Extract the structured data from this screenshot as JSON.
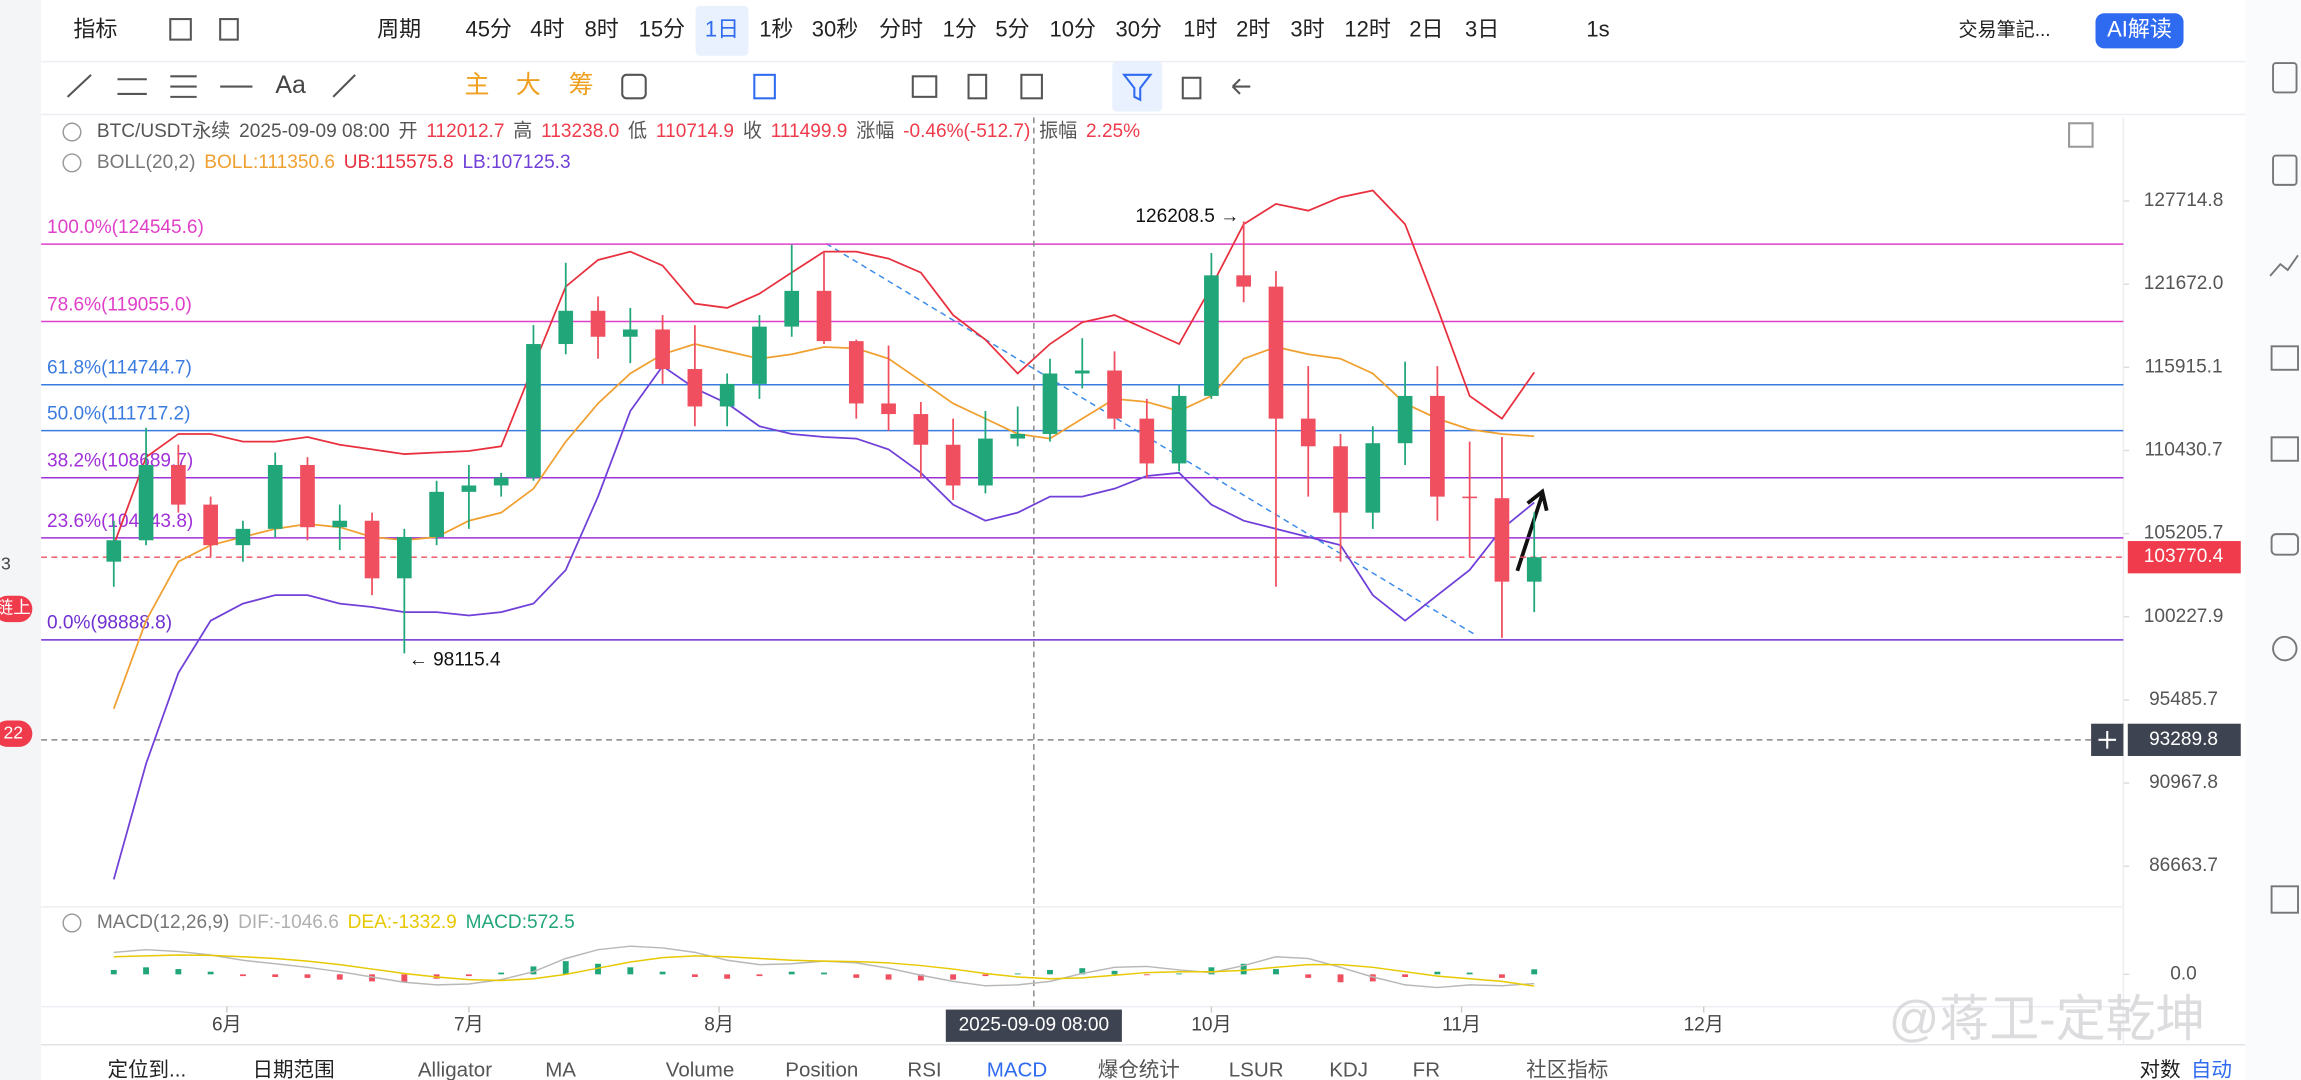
{
  "top_bar": [
    "指标",
    "周期",
    "45分",
    "4时",
    "8时",
    "15分",
    "1日",
    "1秒",
    "30秒",
    "分时",
    "1分",
    "5分",
    "10分",
    "30分",
    "1时",
    "2时",
    "3时",
    "12时",
    "2日",
    "3日",
    "1s",
    "交易筆記...",
    "AI解读"
  ],
  "tool_bar": [
    "Aa",
    "主",
    "大",
    "筹"
  ],
  "side_left": [
    "3",
    "链上",
    "22"
  ],
  "legend": {
    "symbol": "BTC/USDT永续",
    "time": "2025-09-09 08:00",
    "fields": [
      [
        "开",
        "112012.7"
      ],
      [
        "高",
        "113238.0"
      ],
      [
        "低",
        "110714.9"
      ],
      [
        "收",
        "111499.9"
      ],
      [
        "涨幅",
        "-0.46%(-512.7)"
      ],
      [
        "振幅",
        "2.25%"
      ]
    ],
    "boll": [
      "BOLL(20,2)",
      "BOLL:111350.6",
      "UB:115575.8",
      "LB:107125.3"
    ],
    "macd": [
      "MACD(12,26,9)",
      "DIF:-1046.6",
      "DEA:-1332.9",
      "MACD:572.5"
    ]
  },
  "bottom_tabs": [
    "定位到...",
    "日期范围",
    "Alligator",
    "MA",
    "Volume",
    "Position",
    "RSI",
    "MACD",
    "爆仓统计",
    "LSUR",
    "KDJ",
    "FR",
    "社区指标",
    "对数",
    "自动"
  ],
  "watermark": "@蒋卫-定乾坤",
  "chart_data": {
    "type": "candlestick",
    "log_scale": true,
    "up_color": "#21a67a",
    "down_color": "#ef4f5f",
    "x": [
      "2025-05-18",
      "2025-05-22",
      "2025-05-26",
      "2025-05-30",
      "2025-06-03",
      "2025-06-07",
      "2025-06-11",
      "2025-06-15",
      "2025-06-19",
      "2025-06-23",
      "2025-06-27",
      "2025-07-01",
      "2025-07-05",
      "2025-07-09",
      "2025-07-13",
      "2025-07-17",
      "2025-07-21",
      "2025-07-25",
      "2025-07-29",
      "2025-08-02",
      "2025-08-06",
      "2025-08-10",
      "2025-08-14",
      "2025-08-18",
      "2025-08-22",
      "2025-08-26",
      "2025-08-30",
      "2025-09-03",
      "2025-09-07",
      "2025-09-11",
      "2025-09-15",
      "2025-09-19",
      "2025-09-23",
      "2025-09-27",
      "2025-10-01",
      "2025-10-05",
      "2025-10-09",
      "2025-10-13",
      "2025-10-17",
      "2025-10-21",
      "2025-10-25",
      "2025-10-29",
      "2025-11-02",
      "2025-11-06",
      "2025-11-10"
    ],
    "open": [
      103500,
      104800,
      109500,
      107000,
      104500,
      105500,
      109500,
      105600,
      106000,
      102500,
      105000,
      107800,
      108200,
      108700,
      117500,
      119800,
      118000,
      118500,
      115800,
      113300,
      114800,
      118700,
      121200,
      117700,
      113500,
      112800,
      110800,
      108200,
      111200,
      111500,
      115500,
      115700,
      112500,
      109600,
      114000,
      122300,
      121500,
      112500,
      110700,
      106500,
      110900,
      114000,
      107500,
      107400,
      102300
    ],
    "high": [
      106000,
      111900,
      110800,
      107500,
      106000,
      110300,
      110000,
      107000,
      106500,
      105500,
      108500,
      109500,
      109000,
      118800,
      123200,
      120800,
      120000,
      119500,
      118800,
      115500,
      119500,
      124500,
      124000,
      117800,
      117400,
      113600,
      112500,
      113000,
      113300,
      116500,
      117900,
      117000,
      113800,
      114700,
      123900,
      126208.5,
      122600,
      116000,
      111500,
      112000,
      116300,
      116000,
      111000,
      111300,
      106500
    ],
    "low": [
      102000,
      104500,
      106500,
      103800,
      103500,
      105000,
      104800,
      104200,
      101500,
      98115.4,
      104500,
      105500,
      107500,
      108500,
      116800,
      116500,
      116200,
      114800,
      112000,
      112000,
      113800,
      118000,
      117500,
      112500,
      111700,
      108700,
      107300,
      107700,
      110700,
      111000,
      114500,
      111800,
      108700,
      109100,
      113800,
      120400,
      102000,
      107500,
      103500,
      105500,
      109500,
      106000,
      103800,
      99000,
      100500
    ],
    "close": [
      104800,
      109500,
      107000,
      104500,
      105500,
      109500,
      105600,
      106000,
      102500,
      105000,
      107800,
      108200,
      108700,
      117500,
      119800,
      118000,
      118500,
      115800,
      113300,
      114800,
      118700,
      121200,
      117700,
      113500,
      112800,
      110800,
      108200,
      111200,
      111500,
      115500,
      115700,
      112500,
      109600,
      114000,
      122300,
      121500,
      112500,
      110700,
      106500,
      110900,
      114000,
      107500,
      107400,
      102300,
      103770.4
    ],
    "overlays": [
      {
        "color": "#f0a030",
        "values": [
          95000,
          100000,
          103500,
          104500,
          105000,
          105500,
          105800,
          105600,
          105000,
          104800,
          105000,
          106000,
          106500,
          108000,
          111000,
          113500,
          115500,
          116800,
          117500,
          117000,
          116500,
          116800,
          117300,
          117200,
          116500,
          115000,
          113500,
          112500,
          111500,
          111200,
          112500,
          113800,
          113600,
          113000,
          114000,
          116500,
          117300,
          116800,
          116500,
          115500,
          113500,
          112500,
          111800,
          111500,
          111350.6
        ]
      },
      {
        "color": "#e8303f",
        "values": [
          104500,
          110000,
          111500,
          111500,
          111000,
          111000,
          111300,
          110800,
          110500,
          110200,
          110300,
          110400,
          110700,
          116000,
          121500,
          123400,
          124000,
          123000,
          120300,
          120000,
          121000,
          122500,
          124000,
          124000,
          123500,
          122500,
          119500,
          117800,
          115500,
          117500,
          119000,
          119500,
          118500,
          117500,
          121500,
          126000,
          127500,
          127000,
          128000,
          128500,
          126000,
          120000,
          114000,
          112500,
          115575.8
        ]
      },
      {
        "color": "#7040d8",
        "values": [
          86000,
          92000,
          97000,
          100000,
          101000,
          101500,
          101500,
          101000,
          100800,
          100500,
          100500,
          100300,
          100500,
          101000,
          103000,
          107500,
          113000,
          116000,
          114500,
          113500,
          112000,
          111500,
          111300,
          111200,
          110500,
          109000,
          107000,
          106000,
          106500,
          107500,
          107500,
          108000,
          108800,
          109000,
          107000,
          106000,
          105500,
          105000,
          104500,
          101500,
          100000,
          101500,
          103000,
          105500,
          107125.3
        ]
      }
    ],
    "xlim": [
      "2025-05-09",
      "2026-01-22"
    ],
    "xticks": [
      {
        "value": "2025-06-01",
        "label": "6月"
      },
      {
        "value": "2025-07-01",
        "label": "7月"
      },
      {
        "value": "2025-08-01",
        "label": "8月"
      },
      {
        "value": "2025-10-01",
        "label": "10月"
      },
      {
        "value": "2025-11-01",
        "label": "11月"
      },
      {
        "value": "2025-12-01",
        "label": "12月"
      }
    ],
    "ylim": [
      84853,
      134096
    ],
    "yticks": [
      127714.8,
      {
        "value": 121672,
        "label": "121672.0"
      },
      115915.1,
      110430.7,
      105205.7,
      100227.9,
      95485.7,
      90967.8,
      86663.7
    ],
    "fib_levels": [
      {
        "label": "100.0%(124545.6)",
        "value": 124545.6,
        "color": "#e040c8"
      },
      {
        "label": "78.6%(119055.0)",
        "value": 119055.0,
        "color": "#e040c8"
      },
      {
        "label": "61.8%(114744.7)",
        "value": 114744.7,
        "color": "#3a7be0"
      },
      {
        "label": "50.0%(111717.2)",
        "value": 111717.2,
        "color": "#3a7be0"
      },
      {
        "label": "38.2%(108689.7)",
        "value": 108689.7,
        "color": "#a030d8"
      },
      {
        "label": "23.6%(104943.8)",
        "value": 104943.8,
        "color": "#a030d8"
      },
      {
        "label": "0.0%(98888.8)",
        "value": 98888.8,
        "color": "#7030d0"
      }
    ],
    "annotations": [
      "126208.5 →",
      "← 98115.4"
    ],
    "last_price": 103770.4,
    "cross_price": 93289.8,
    "cross_time": "2025-09-09 08:00",
    "macd": {
      "hist": [
        500,
        800,
        600,
        300,
        -200,
        -300,
        -400,
        -600,
        -800,
        -900,
        -500,
        -200,
        200,
        900,
        1500,
        1200,
        800,
        300,
        -300,
        -500,
        -200,
        300,
        200,
        -400,
        -600,
        -700,
        -600,
        -200,
        100,
        500,
        700,
        400,
        -100,
        100,
        800,
        1200,
        600,
        -400,
        -900,
        -800,
        -300,
        300,
        200,
        -400,
        572.5
      ],
      "dif": [
        2500,
        2800,
        2600,
        2200,
        1600,
        1200,
        800,
        300,
        -300,
        -900,
        -1200,
        -1100,
        -600,
        300,
        1800,
        2800,
        3200,
        3000,
        2500,
        1600,
        1100,
        1200,
        1500,
        1300,
        700,
        -100,
        -800,
        -1300,
        -1200,
        -800,
        100,
        800,
        900,
        500,
        200,
        1000,
        2000,
        1800,
        800,
        -300,
        -1200,
        -1500,
        -1200,
        -1300,
        -1046.6
      ],
      "dea": [
        2000,
        2100,
        2200,
        2150,
        2000,
        1800,
        1500,
        1100,
        600,
        100,
        -300,
        -600,
        -700,
        -500,
        0,
        700,
        1400,
        1900,
        2100,
        2000,
        1800,
        1600,
        1500,
        1450,
        1300,
        1000,
        600,
        100,
        -300,
        -500,
        -400,
        -100,
        200,
        300,
        300,
        450,
        800,
        1100,
        1100,
        800,
        300,
        -200,
        -500,
        -800,
        -1332.9
      ],
      "ylim": [
        -4000,
        4000
      ],
      "yticks": [
        {
          "value": 0,
          "label": "0.0"
        }
      ]
    }
  }
}
